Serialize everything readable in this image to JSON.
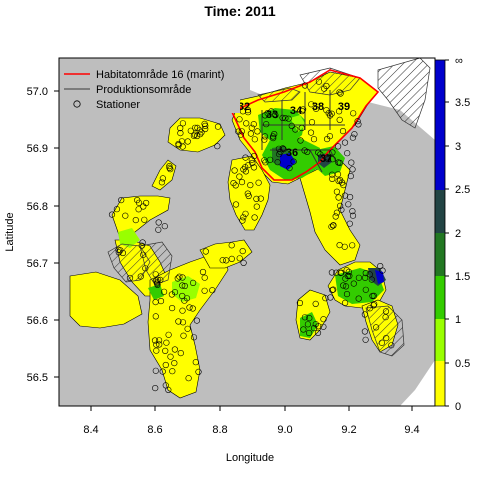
{
  "title": "Time: 2011",
  "axes": {
    "x_label": "Longitude",
    "y_label": "Latitude",
    "x_ticks": [
      "8.4",
      "8.6",
      "8.8",
      "9.0",
      "9.2",
      "9.4"
    ],
    "y_ticks": [
      "56.5",
      "56.6",
      "56.7",
      "56.8",
      "56.9",
      "57.0"
    ]
  },
  "legend": {
    "items": [
      {
        "label": "Habitatområde 16 (marint)",
        "type": "line",
        "color": "#ff0000"
      },
      {
        "label": "Produktionsområde",
        "type": "line",
        "color": "#555555"
      },
      {
        "label": "Stationer",
        "type": "circle",
        "color": "#000000"
      }
    ]
  },
  "colorbar": {
    "labels": [
      "∞",
      "3.5",
      "3",
      "2.5",
      "2",
      "1.5",
      "1",
      "0.5",
      "0"
    ],
    "colors": [
      "#ffff00",
      "#99ff00",
      "#33cc00",
      "#227722",
      "#224444",
      "#0000cc",
      "#0000aa"
    ]
  },
  "area_labels": [
    "32",
    "33",
    "34",
    "38",
    "39",
    "36",
    "37"
  ],
  "colors": {
    "land": "#bebebe",
    "water": "#ffff00",
    "habitat": "#ff0000",
    "production": "#555555"
  }
}
